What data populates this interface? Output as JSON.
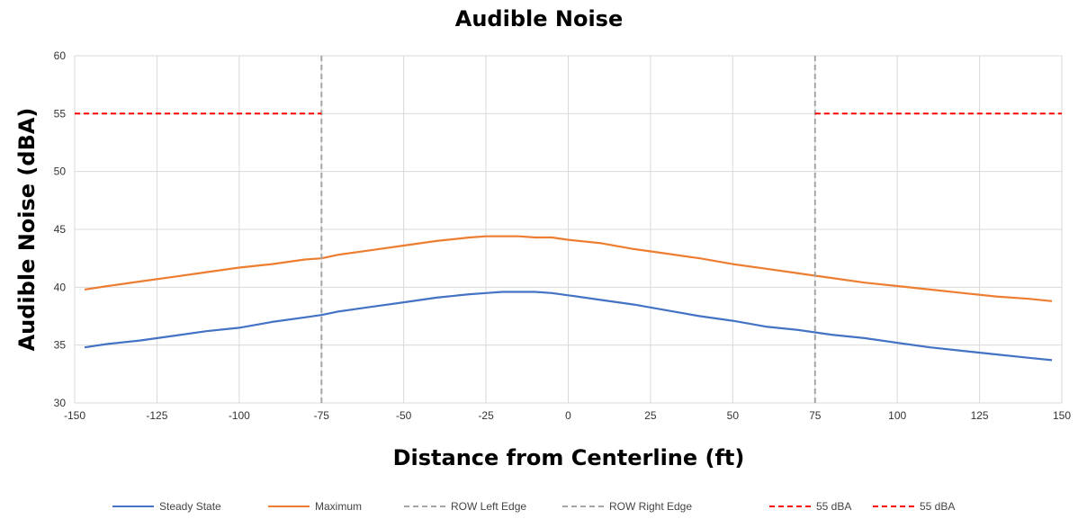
{
  "chart_data": {
    "type": "line",
    "title": "Audible Noise",
    "xlabel": "Distance from Centerline (ft)",
    "ylabel": "Audible Noise (dBA)",
    "xlim": [
      -150,
      150
    ],
    "ylim": [
      30,
      60
    ],
    "xticks": [
      -150,
      -125,
      -100,
      -75,
      -50,
      -25,
      0,
      25,
      50,
      75,
      100,
      125,
      150
    ],
    "yticks": [
      30,
      35,
      40,
      45,
      50,
      55,
      60
    ],
    "grid": true,
    "legend_position": "bottom",
    "series": [
      {
        "name": "Steady State",
        "color": "#4472C4",
        "style": "solid",
        "x": [
          -147,
          -140,
          -130,
          -120,
          -110,
          -100,
          -90,
          -80,
          -75,
          -70,
          -60,
          -50,
          -40,
          -30,
          -25,
          -20,
          -15,
          -10,
          -5,
          0,
          10,
          20,
          30,
          40,
          50,
          60,
          70,
          75,
          80,
          90,
          100,
          110,
          120,
          130,
          140,
          147
        ],
        "y": [
          34.8,
          35.1,
          35.4,
          35.8,
          36.2,
          36.5,
          37.0,
          37.4,
          37.6,
          37.9,
          38.3,
          38.7,
          39.1,
          39.4,
          39.5,
          39.6,
          39.6,
          39.6,
          39.5,
          39.3,
          38.9,
          38.5,
          38.0,
          37.5,
          37.1,
          36.6,
          36.3,
          36.1,
          35.9,
          35.6,
          35.2,
          34.8,
          34.5,
          34.2,
          33.9,
          33.7
        ]
      },
      {
        "name": "Maximum",
        "color": "#ED7D31",
        "style": "solid",
        "x": [
          -147,
          -140,
          -130,
          -120,
          -110,
          -100,
          -90,
          -80,
          -75,
          -70,
          -60,
          -50,
          -40,
          -30,
          -25,
          -20,
          -15,
          -10,
          -5,
          0,
          10,
          20,
          30,
          40,
          50,
          60,
          70,
          75,
          80,
          90,
          100,
          110,
          120,
          130,
          140,
          147
        ],
        "y": [
          39.8,
          40.1,
          40.5,
          40.9,
          41.3,
          41.7,
          42.0,
          42.4,
          42.5,
          42.8,
          43.2,
          43.6,
          44.0,
          44.3,
          44.4,
          44.4,
          44.4,
          44.3,
          44.3,
          44.1,
          43.8,
          43.3,
          42.9,
          42.5,
          42.0,
          41.6,
          41.2,
          41.0,
          40.8,
          40.4,
          40.1,
          39.8,
          39.5,
          39.2,
          39.0,
          38.8
        ]
      },
      {
        "name": "ROW Left Edge",
        "color": "#A5A5A5",
        "style": "dashed",
        "x": [
          -75,
          -75
        ],
        "y": [
          30,
          60
        ]
      },
      {
        "name": "ROW Right Edge",
        "color": "#A5A5A5",
        "style": "dashed",
        "x": [
          75,
          75
        ],
        "y": [
          30,
          60
        ]
      },
      {
        "name": "55 dBA",
        "color": "#FF0000",
        "style": "dashed",
        "x": [
          -150,
          -75
        ],
        "y": [
          55,
          55
        ]
      },
      {
        "name": "55 dBA",
        "color": "#FF0000",
        "style": "dashed",
        "x": [
          75,
          150
        ],
        "y": [
          55,
          55
        ]
      }
    ]
  }
}
